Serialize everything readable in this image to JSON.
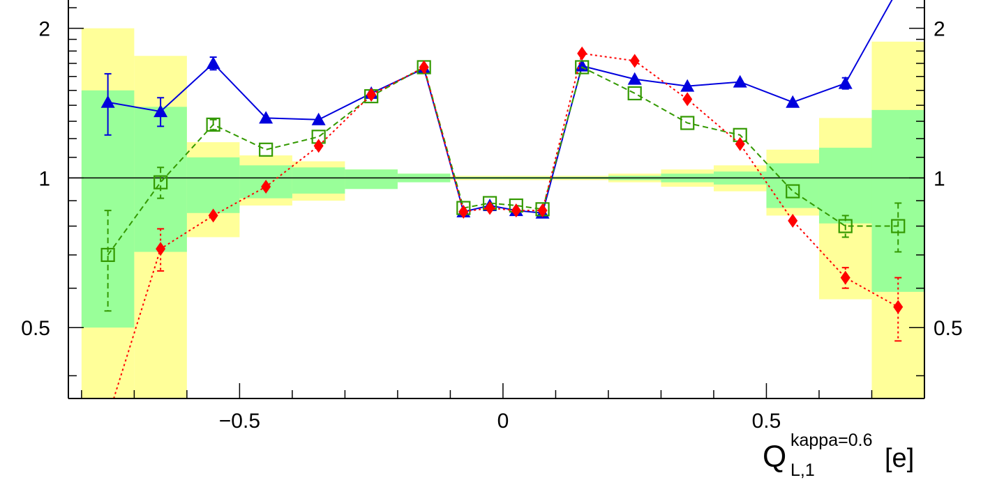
{
  "chart_data": {
    "type": "line",
    "xlabel": {
      "base": "Q",
      "superscript": "kappa=0.6",
      "subscript": "L,1",
      "unit": "[e]"
    },
    "ylabel": "",
    "xlim": [
      -0.825,
      0.8
    ],
    "ylim": [
      0.36,
      2.28
    ],
    "y_scale": "log",
    "x_ticks": [
      {
        "value": -0.5,
        "label": "−0.5"
      },
      {
        "value": 0,
        "label": "0"
      },
      {
        "value": 0.5,
        "label": "0.5"
      }
    ],
    "y_ticks": [
      {
        "value": 0.5,
        "label": "0.5"
      },
      {
        "value": 1,
        "label": "1"
      },
      {
        "value": 2,
        "label": "2"
      }
    ],
    "reference_line": 1,
    "uncertainty_bands": {
      "edges": [
        -0.8,
        -0.7,
        -0.6,
        -0.5,
        -0.4,
        -0.3,
        -0.2,
        -0.1,
        0.0,
        0.1,
        0.2,
        0.3,
        0.4,
        0.5,
        0.6,
        0.7,
        0.8
      ],
      "inner_band": {
        "color": "#99ff99",
        "low": [
          0.5,
          0.71,
          0.85,
          0.91,
          0.93,
          0.95,
          0.98,
          0.995,
          0.995,
          0.995,
          0.99,
          0.98,
          0.97,
          0.87,
          0.81,
          0.59
        ],
        "high": [
          1.5,
          1.39,
          1.1,
          1.06,
          1.05,
          1.04,
          1.02,
          1.005,
          1.005,
          1.005,
          1.01,
          1.02,
          1.03,
          1.07,
          1.15,
          1.37
        ]
      },
      "outer_band": {
        "color": "#ffff99",
        "low": [
          0.3,
          0.3,
          0.76,
          0.88,
          0.9,
          0.97,
          0.99,
          0.99,
          0.99,
          0.99,
          0.98,
          0.96,
          0.94,
          0.84,
          0.57,
          0.3
        ],
        "high": [
          2.0,
          1.76,
          1.18,
          1.11,
          1.08,
          1.04,
          1.02,
          1.01,
          1.01,
          1.01,
          1.02,
          1.04,
          1.06,
          1.14,
          1.32,
          1.88
        ]
      }
    },
    "series": [
      {
        "color": "#0000dd",
        "line_style": "solid",
        "marker": "triangle",
        "x": [
          -0.75,
          -0.65,
          -0.55,
          -0.45,
          -0.35,
          -0.25,
          -0.15,
          -0.075,
          -0.025,
          0.025,
          0.075,
          0.15,
          0.25,
          0.35,
          0.45,
          0.55,
          0.65,
          0.75
        ],
        "y": [
          1.42,
          1.36,
          1.7,
          1.32,
          1.31,
          1.48,
          1.66,
          0.855,
          0.88,
          0.86,
          0.85,
          1.68,
          1.58,
          1.53,
          1.56,
          1.42,
          1.55,
          2.4
        ],
        "yerr": [
          0.2,
          0.09,
          0.05,
          0,
          0,
          0,
          0,
          0,
          0,
          0,
          0,
          0,
          0,
          0,
          0,
          0,
          0.04,
          0
        ]
      },
      {
        "color": "#339900",
        "line_style": "dashed",
        "marker": "open-square",
        "x": [
          -0.75,
          -0.65,
          -0.55,
          -0.45,
          -0.35,
          -0.25,
          -0.15,
          -0.075,
          -0.025,
          0.025,
          0.075,
          0.15,
          0.25,
          0.35,
          0.45,
          0.55,
          0.65,
          0.75
        ],
        "y": [
          0.7,
          0.98,
          1.28,
          1.14,
          1.21,
          1.46,
          1.67,
          0.87,
          0.89,
          0.88,
          0.865,
          1.67,
          1.48,
          1.29,
          1.22,
          0.94,
          0.8,
          0.8
        ],
        "yerr": [
          0.16,
          0.07,
          0.03,
          0,
          0,
          0,
          0,
          0,
          0,
          0,
          0,
          0,
          0,
          0,
          0,
          0,
          0.04,
          0.09
        ]
      },
      {
        "color": "#ff0000",
        "line_style": "dotted",
        "marker": "diamond",
        "x": [
          -0.75,
          -0.65,
          -0.55,
          -0.45,
          -0.35,
          -0.25,
          -0.15,
          -0.075,
          -0.025,
          0.025,
          0.075,
          0.15,
          0.25,
          0.35,
          0.45,
          0.55,
          0.65,
          0.75
        ],
        "y": [
          0.33,
          0.72,
          0.84,
          0.96,
          1.16,
          1.47,
          1.67,
          0.855,
          0.87,
          0.86,
          0.86,
          1.78,
          1.72,
          1.44,
          1.17,
          0.82,
          0.63,
          0.55
        ],
        "yerr": [
          0,
          0.07,
          0,
          0,
          0,
          0,
          0,
          0,
          0,
          0,
          0,
          0,
          0,
          0,
          0,
          0,
          0.03,
          0.08
        ]
      }
    ]
  }
}
